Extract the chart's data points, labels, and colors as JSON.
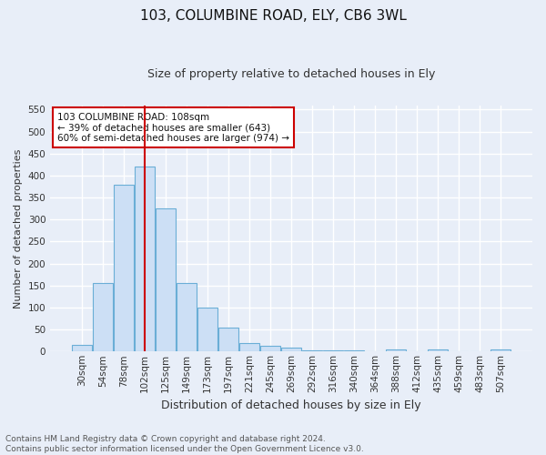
{
  "title_line1": "103, COLUMBINE ROAD, ELY, CB6 3WL",
  "title_line2": "Size of property relative to detached houses in Ely",
  "xlabel": "Distribution of detached houses by size in Ely",
  "ylabel": "Number of detached properties",
  "footer_line1": "Contains HM Land Registry data © Crown copyright and database right 2024.",
  "footer_line2": "Contains public sector information licensed under the Open Government Licence v3.0.",
  "bar_labels": [
    "30sqm",
    "54sqm",
    "78sqm",
    "102sqm",
    "125sqm",
    "149sqm",
    "173sqm",
    "197sqm",
    "221sqm",
    "245sqm",
    "269sqm",
    "292sqm",
    "316sqm",
    "340sqm",
    "364sqm",
    "388sqm",
    "412sqm",
    "435sqm",
    "459sqm",
    "483sqm",
    "507sqm"
  ],
  "bar_values": [
    15,
    155,
    380,
    420,
    325,
    155,
    100,
    55,
    20,
    13,
    8,
    3,
    3,
    2,
    0,
    5,
    0,
    4,
    0,
    0,
    4
  ],
  "bar_color": "#ccdff5",
  "bar_edge_color": "#6aaed6",
  "ylim": [
    0,
    560
  ],
  "yticks": [
    0,
    50,
    100,
    150,
    200,
    250,
    300,
    350,
    400,
    450,
    500,
    550
  ],
  "property_bin_index": 3,
  "vline_color": "#cc0000",
  "annotation_text_line1": "103 COLUMBINE ROAD: 108sqm",
  "annotation_text_line2": "← 39% of detached houses are smaller (643)",
  "annotation_text_line3": "60% of semi-detached houses are larger (974) →",
  "annotation_box_color": "#ffffff",
  "annotation_box_edge_color": "#cc0000",
  "background_color": "#e8eef8",
  "grid_color": "#ffffff",
  "title1_fontsize": 11,
  "title2_fontsize": 9,
  "ylabel_fontsize": 8,
  "xlabel_fontsize": 9,
  "tick_fontsize": 7.5,
  "ann_fontsize": 7.5,
  "footer_fontsize": 6.5
}
